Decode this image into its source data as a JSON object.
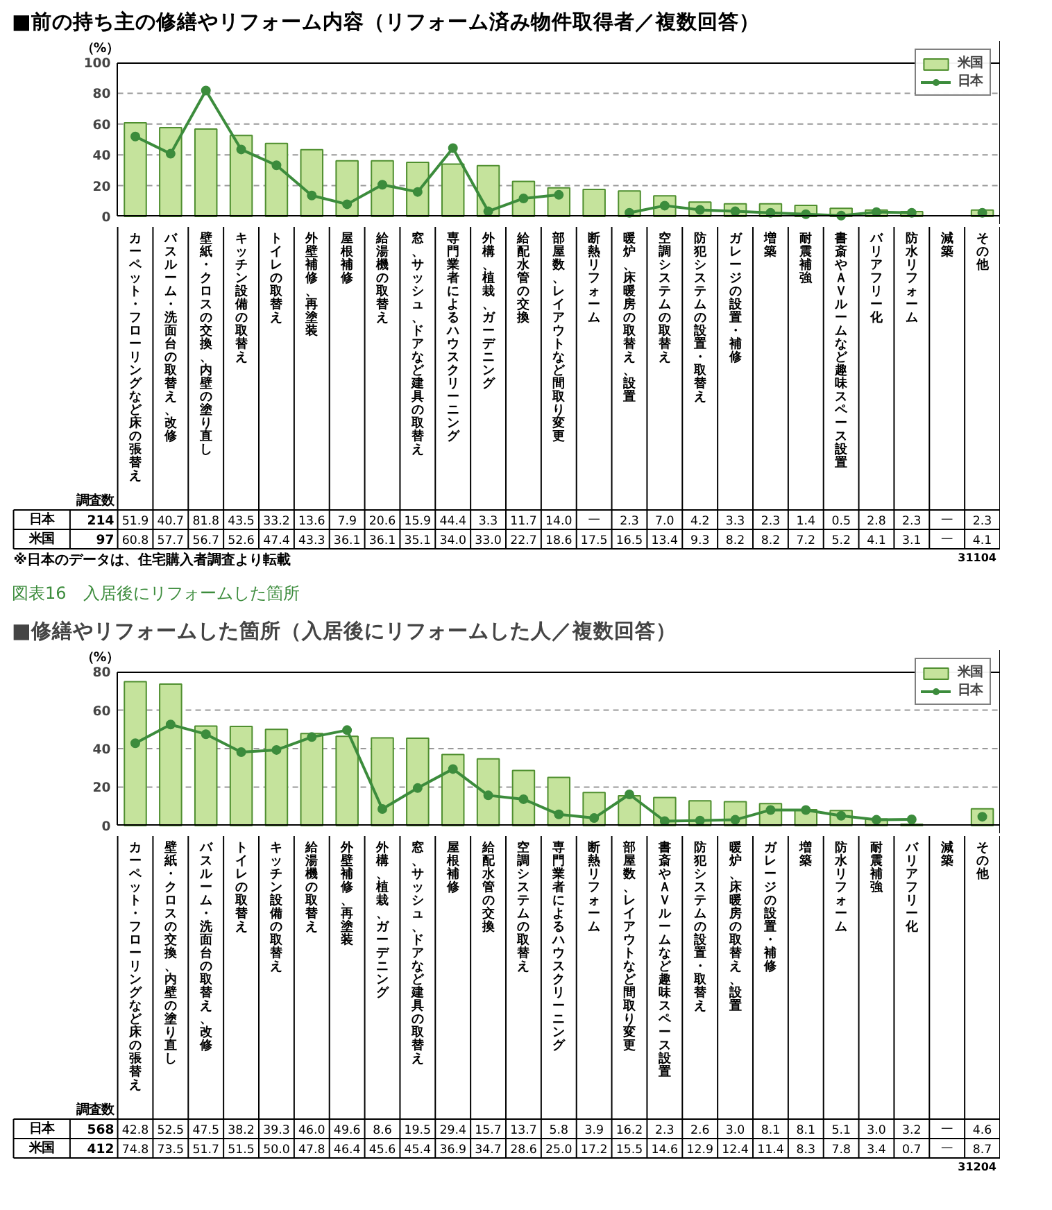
{
  "chart_data": [
    {
      "type": "bar",
      "title": "■前の持ち主の修繕やリフォーム内容（リフォーム済み物件取得者／複数回答）",
      "ylabel": "（%）",
      "categories": [
        "カーペット・フローリングなど床の張替え",
        "バスルーム・洗面台の取替え、改修",
        "壁紙・クロスの交換、内壁の塗り直し",
        "キッチン設備の取替え",
        "トイレの取替え",
        "外壁補修、再塗装",
        "屋根補修",
        "給湯機の取替え",
        "窓、サッシュ、ドアなど建具の取替え",
        "専門業者によるハウスクリーニング",
        "外構、植栽、ガーデニング",
        "給配水管の交換",
        "部屋数、レイアウトなど間取り変更",
        "断熱リフォーム",
        "暖炉、床暖房の取替え、設置",
        "空調システムの取替え",
        "防犯システムの設置・取替え",
        "ガレージの設置・補修",
        "増築",
        "耐震補強",
        "書斎やＡＶルームなど趣味スペース設置",
        "バリアフリー化",
        "防水リフォーム",
        "減築",
        "その他"
      ],
      "series": [
        {
          "name": "米国",
          "color": "#c5e39c",
          "values": [
            60.8,
            57.7,
            56.7,
            52.6,
            47.4,
            43.3,
            36.1,
            36.1,
            35.1,
            34.0,
            33.0,
            22.7,
            18.6,
            17.5,
            16.5,
            13.4,
            9.3,
            8.2,
            8.2,
            7.2,
            5.2,
            4.1,
            3.1,
            null,
            4.1
          ],
          "value_labels": [
            "60.8",
            "57.7",
            "56.7",
            "52.6",
            "47.4",
            "43.3",
            "36.1",
            "36.1",
            "35.1",
            "34.0",
            "33.0",
            "22.7",
            "18.6",
            "17.5",
            "16.5",
            "13.4",
            "9.3",
            "8.2",
            "8.2",
            "7.2",
            "5.2",
            "4.1",
            "3.1",
            "—",
            "4.1"
          ]
        },
        {
          "name": "日本",
          "type": "line",
          "color": "#3c8c3c",
          "values": [
            51.9,
            40.7,
            81.8,
            43.5,
            33.2,
            13.6,
            7.9,
            20.6,
            15.9,
            44.4,
            3.3,
            11.7,
            14.0,
            null,
            2.3,
            7.0,
            4.2,
            3.3,
            2.3,
            1.4,
            0.5,
            2.8,
            2.3,
            null,
            2.3
          ],
          "value_labels": [
            "51.9",
            "40.7",
            "81.8",
            "43.5",
            "33.2",
            "13.6",
            "7.9",
            "20.6",
            "15.9",
            "44.4",
            "3.3",
            "11.7",
            "14.0",
            "—",
            "2.3",
            "7.0",
            "4.2",
            "3.3",
            "2.3",
            "1.4",
            "0.5",
            "2.8",
            "2.3",
            "—",
            "2.3"
          ]
        }
      ],
      "ylim": [
        0,
        100
      ],
      "yticks": [
        0,
        20,
        40,
        60,
        80,
        100
      ],
      "grid": "y",
      "legend": "top right",
      "marker": "circle",
      "annotations": [
        "調査数",
        "97",
        "214",
        "※日本のデータは、住宅購入者調査より転載",
        "31104"
      ]
    },
    {
      "type": "bar",
      "title": "図表16　入居後にリフォームした箇所",
      "subtitle": "■修繕やリフォームした箇所（入居後にリフォームした人／複数回答）",
      "ylabel": "（%）",
      "categories": [
        "カーペット・フローリングなど床の張替え",
        "壁紙・クロスの交換、内壁の塗り直し",
        "バスルーム・洗面台の取替え、改修",
        "トイレの取替え",
        "キッチン設備の取替え",
        "給湯機の取替え",
        "外壁補修、再塗装",
        "外構、植栽、ガーデニング",
        "窓、サッシュ、ドアなど建具の取替え",
        "屋根補修",
        "給配水管の交換",
        "空調システムの取替え",
        "専門業者によるハウスクリーニング",
        "断熱リフォーム",
        "部屋数、レイアウトなど間取り変更",
        "書斎やＡＶルームなど趣味スペース設置",
        "防犯システムの設置・取替え",
        "暖炉、床暖房の取替え、設置",
        "ガレージの設置・補修",
        "増築",
        "防水リフォーム",
        "耐震補強",
        "バリアフリー化",
        "減築",
        "その他"
      ],
      "series": [
        {
          "name": "米国",
          "color": "#c5e39c",
          "values": [
            74.8,
            73.5,
            51.7,
            51.5,
            50.0,
            47.8,
            46.4,
            45.6,
            45.4,
            36.9,
            34.7,
            28.6,
            25.0,
            17.2,
            15.5,
            14.6,
            12.9,
            12.4,
            11.4,
            8.3,
            7.8,
            3.4,
            0.7,
            null,
            8.7
          ],
          "value_labels": [
            "74.8",
            "73.5",
            "51.7",
            "51.5",
            "50.0",
            "47.8",
            "46.4",
            "45.6",
            "45.4",
            "36.9",
            "34.7",
            "28.6",
            "25.0",
            "17.2",
            "15.5",
            "14.6",
            "12.9",
            "12.4",
            "11.4",
            "8.3",
            "7.8",
            "3.4",
            "0.7",
            "—",
            "8.7"
          ]
        },
        {
          "name": "日本",
          "type": "line",
          "color": "#3c8c3c",
          "values": [
            42.8,
            52.5,
            47.5,
            38.2,
            39.3,
            46.0,
            49.6,
            8.6,
            19.5,
            29.4,
            15.7,
            13.7,
            5.8,
            3.9,
            16.2,
            2.3,
            2.6,
            3.0,
            8.1,
            8.1,
            5.1,
            3.0,
            3.2,
            null,
            4.6
          ],
          "value_labels": [
            "42.8",
            "52.5",
            "47.5",
            "38.2",
            "39.3",
            "46.0",
            "49.6",
            "8.6",
            "19.5",
            "29.4",
            "15.7",
            "13.7",
            "5.8",
            "3.9",
            "16.2",
            "2.3",
            "2.6",
            "3.0",
            "8.1",
            "8.1",
            "5.1",
            "3.0",
            "3.2",
            "—",
            "4.6"
          ]
        }
      ],
      "ylim": [
        0,
        80
      ],
      "yticks": [
        0,
        20,
        40,
        60,
        80
      ],
      "grid": "y",
      "legend": "top right",
      "marker": "circle",
      "annotations": [
        "調査数",
        "412",
        "568",
        "31204"
      ]
    }
  ]
}
